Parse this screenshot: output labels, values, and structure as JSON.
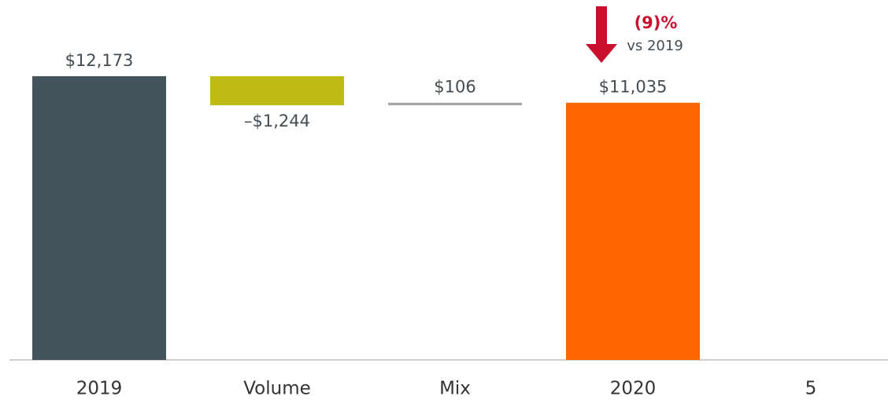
{
  "chart_data": {
    "type": "waterfall",
    "categories": [
      "2019",
      "Volume",
      "Mix",
      "2020",
      "5"
    ],
    "values": [
      12173,
      -1244,
      106,
      11035,
      null
    ],
    "value_labels": [
      "$12,173",
      "–$1,244",
      "$106",
      "$11,035",
      null
    ],
    "colors": [
      "#44535c",
      "#bdbb14",
      "#a3a3a3",
      "#ff6600",
      null
    ],
    "annotations": [
      "(9)%",
      "vs 2019"
    ]
  }
}
